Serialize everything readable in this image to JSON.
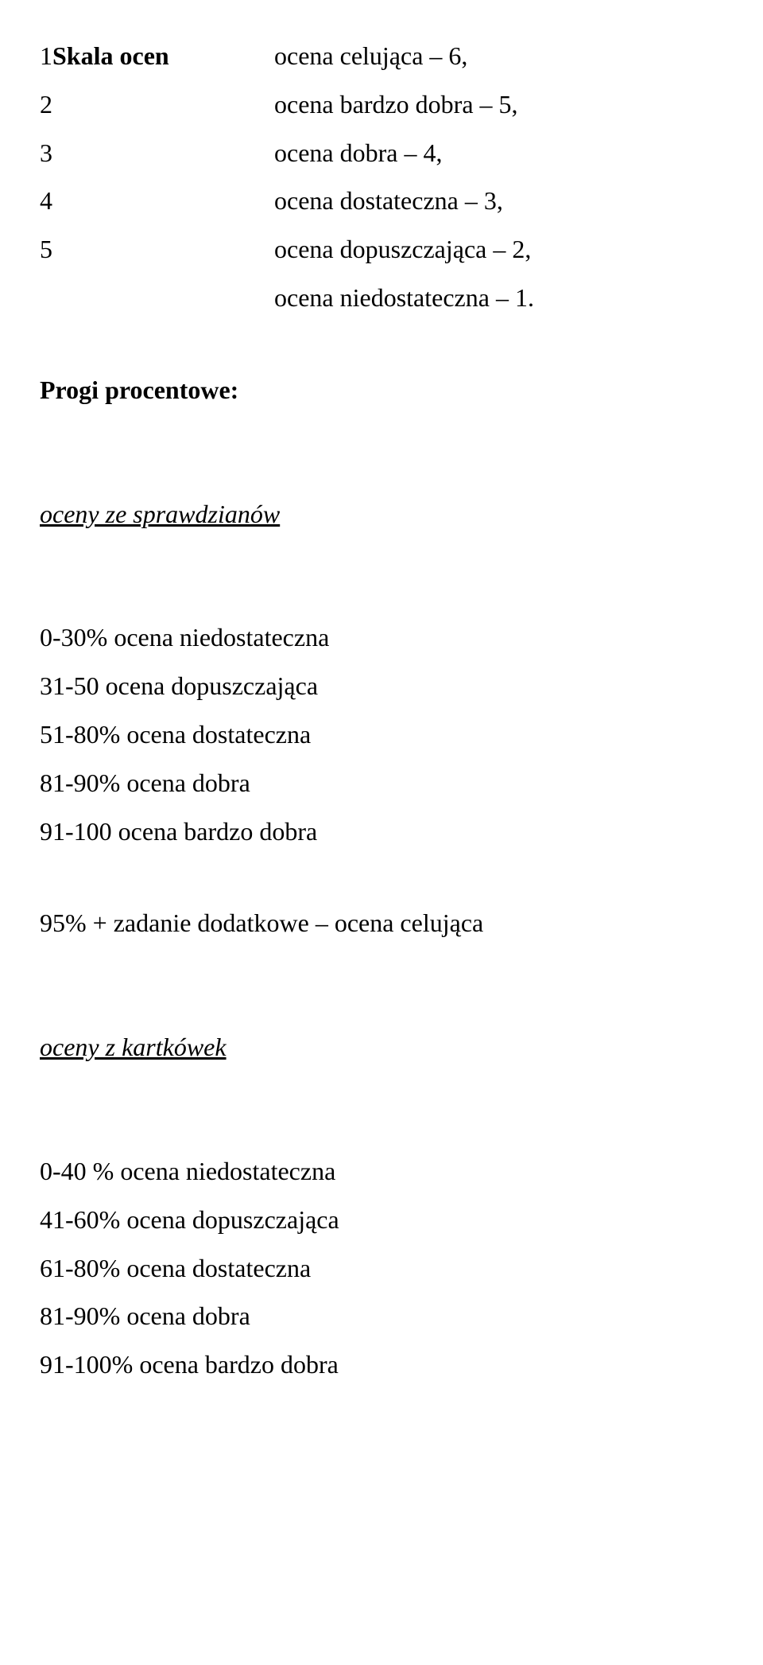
{
  "header": {
    "left_prefix": "1",
    "left_label": "Skala ocen",
    "right": "ocena celująca – 6,"
  },
  "scale": [
    {
      "left": "2",
      "right": "ocena bardzo dobra – 5,"
    },
    {
      "left": "3",
      "right": "ocena dobra – 4,"
    },
    {
      "left": "4",
      "right": "ocena dostateczna – 3,"
    },
    {
      "left": "5",
      "right": " ocena dopuszczająca – 2,"
    }
  ],
  "scale_last_right_only": "ocena niedostateczna – 1.",
  "progi_label": " Progi procentowe:",
  "section1": {
    "title": "oceny ze sprawdzianów",
    "lines": [
      "0-30% ocena niedostateczna",
      "31-50 ocena dopuszczająca",
      "51-80% ocena dostateczna",
      "81-90% ocena dobra",
      "91-100 ocena bardzo dobra"
    ],
    "extra": "95% + zadanie dodatkowe – ocena celująca"
  },
  "section2": {
    "title": "oceny z kartkówek",
    "lines": [
      "0-40 % ocena niedostateczna",
      "41-60% ocena dopuszczająca",
      "61-80% ocena dostateczna",
      "81-90% ocena dobra",
      "91-100% ocena bardzo dobra"
    ]
  }
}
